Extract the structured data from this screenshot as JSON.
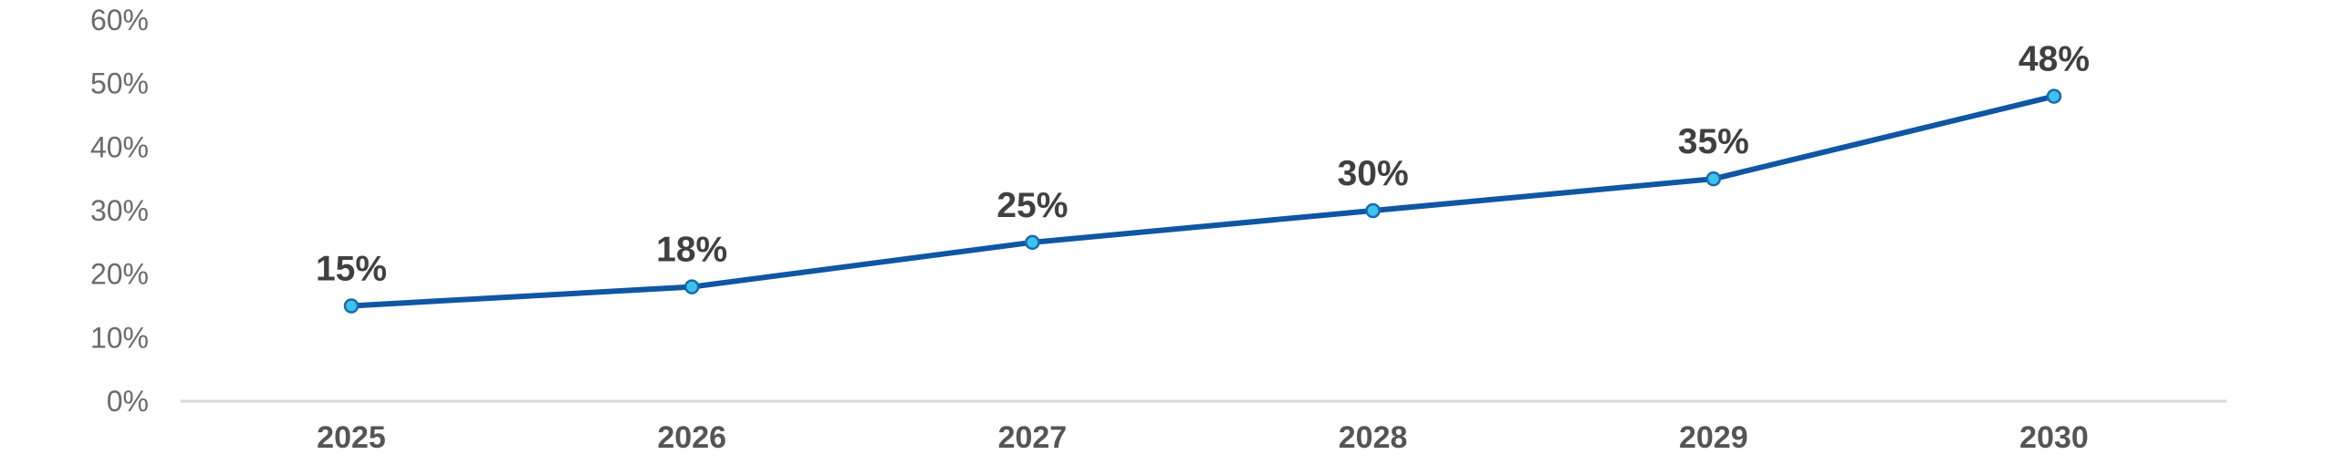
{
  "chart_data": {
    "type": "line",
    "title": "",
    "xlabel": "",
    "ylabel": "",
    "categories": [
      "2025",
      "2026",
      "2027",
      "2028",
      "2029",
      "2030"
    ],
    "series": [
      {
        "values": [
          15,
          18,
          25,
          30,
          35,
          48
        ],
        "data_labels": [
          "15%",
          "18%",
          "25%",
          "30%",
          "35%",
          "48%"
        ],
        "color": "#0f56a3",
        "marker_fill": "#3dc2f0",
        "marker_stroke": "#1a6aa8"
      }
    ],
    "ylim": [
      0,
      60
    ],
    "y_ticks": [
      0,
      10,
      20,
      30,
      40,
      50,
      60
    ],
    "y_tick_labels": [
      "0%",
      "10%",
      "20%",
      "30%",
      "40%",
      "50%",
      "60%"
    ],
    "grid": false,
    "legend": "none",
    "axis_color": "#d9d9d9"
  }
}
